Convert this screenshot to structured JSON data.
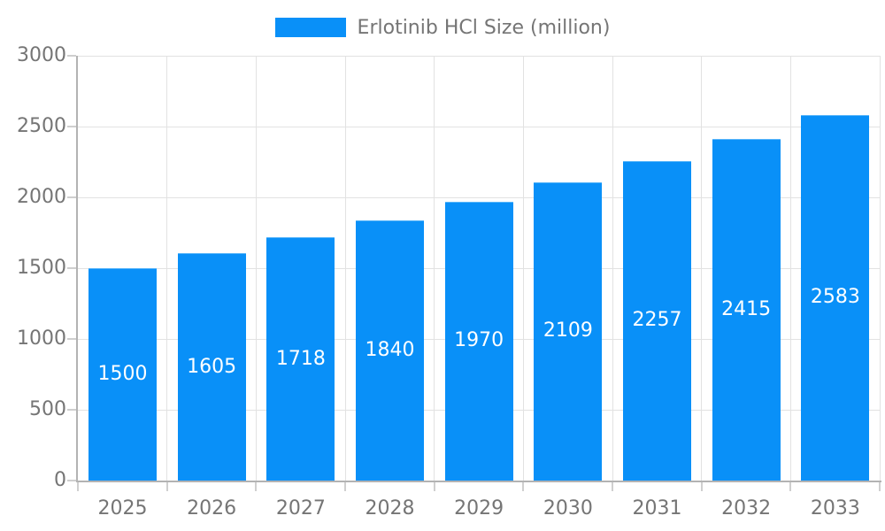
{
  "colors": {
    "bar": "#0990f8",
    "bar_border": "#59b6fa",
    "grid": "#e2e2e2",
    "axis": "#b3b3b3",
    "tick": "#cfcfcf",
    "label": "#757575",
    "value_label": "#ffffff"
  },
  "chart_data": {
    "type": "bar",
    "title": "",
    "legend": "Erlotinib HCl Size (million)",
    "legend_position": "top",
    "categories": [
      "2025",
      "2026",
      "2027",
      "2028",
      "2029",
      "2030",
      "2031",
      "2032",
      "2033"
    ],
    "series": [
      {
        "name": "Erlotinib HCl Size (million)",
        "values": [
          1500,
          1605,
          1718,
          1840,
          1970,
          2109,
          2257,
          2415,
          2583
        ]
      }
    ],
    "values": [
      1500,
      1605,
      1718,
      1840,
      1970,
      2109,
      2257,
      2415,
      2583
    ],
    "value_labels_shown": true,
    "xlabel": "",
    "ylabel": "",
    "ylim": [
      0,
      3000
    ],
    "yticks": [
      0,
      500,
      1000,
      1500,
      2000,
      2500,
      3000
    ],
    "grid": true
  }
}
